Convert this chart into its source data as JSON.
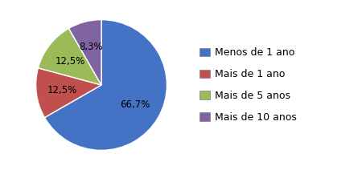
{
  "labels": [
    "Menos de 1 ano",
    "Mais de 1 ano",
    "Mais de 5 anos",
    "Mais de 10 anos"
  ],
  "values": [
    66.7,
    12.5,
    12.5,
    8.3
  ],
  "colors": [
    "#4472C4",
    "#C0504D",
    "#9BBB59",
    "#8064A2"
  ],
  "pct_labels": [
    "66,7%",
    "12,5%",
    "12,5%",
    "8,3%"
  ],
  "background_color": "#FFFFFF",
  "startangle": 90,
  "legend_fontsize": 9.0,
  "pct_fontsize": 8.5
}
